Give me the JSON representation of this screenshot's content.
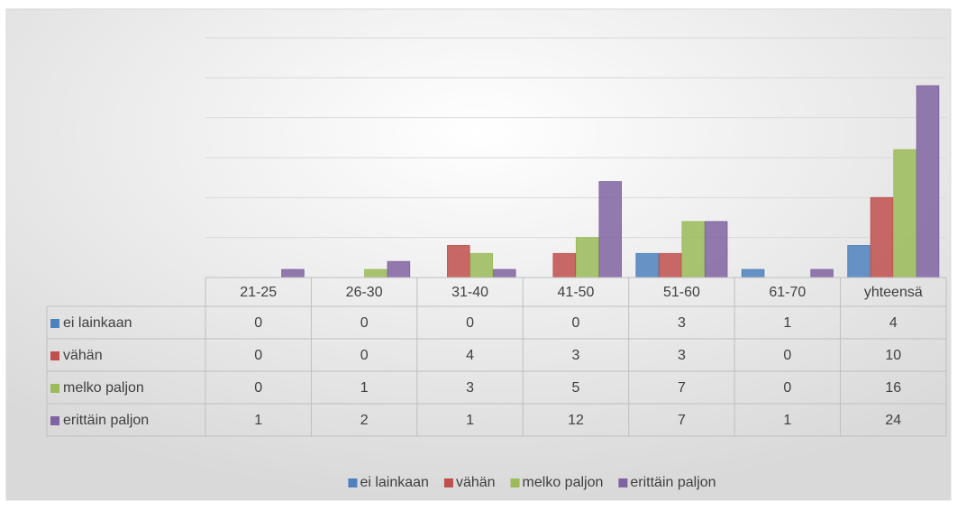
{
  "chart_data": {
    "type": "bar",
    "categories": [
      "21-25",
      "26-30",
      "31-40",
      "41-50",
      "51-60",
      "61-70",
      "yhteensä"
    ],
    "series": [
      {
        "name": "ei lainkaan",
        "color": "#4f81bd",
        "values": [
          0,
          0,
          0,
          0,
          3,
          1,
          4
        ]
      },
      {
        "name": "vähän",
        "color": "#c0504d",
        "values": [
          0,
          0,
          4,
          3,
          3,
          0,
          10
        ]
      },
      {
        "name": "melko paljon",
        "color": "#9bbb59",
        "values": [
          0,
          1,
          3,
          5,
          7,
          0,
          16
        ]
      },
      {
        "name": "erittäin paljon",
        "color": "#8064a2",
        "values": [
          1,
          2,
          1,
          12,
          7,
          1,
          24
        ]
      }
    ],
    "ylim": [
      0,
      30
    ],
    "yticks": [
      0,
      5,
      10,
      15,
      20,
      25,
      30
    ],
    "grid": true,
    "legend": "bottom"
  }
}
